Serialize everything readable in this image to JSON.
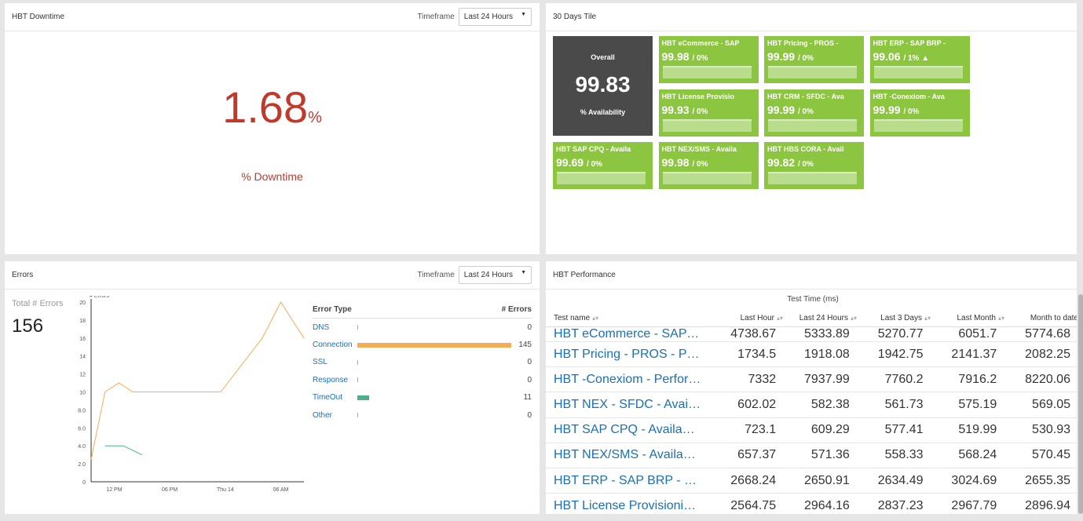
{
  "downtime": {
    "title": "HBT Downtime",
    "timeframe_label": "Timeframe",
    "timeframe_value": "Last 24 Hours",
    "value": "1.68",
    "unit": "%",
    "label": "% Downtime"
  },
  "tiles": {
    "title": "30 Days Tile",
    "overall": {
      "label": "Overall",
      "value": "99.83",
      "sublabel": "% Availability"
    },
    "items": [
      {
        "name": "HBT eCommerce - SAP",
        "value": "99.98",
        "change": "/ 0%"
      },
      {
        "name": "HBT Pricing - PROS -",
        "value": "99.99",
        "change": "/ 0%"
      },
      {
        "name": "HBT ERP - SAP BRP -",
        "value": "99.06",
        "change": "/ 1% ▲"
      },
      {
        "name": "HBT License Provisio",
        "value": "99.93",
        "change": "/ 0%"
      },
      {
        "name": "HBT CRM - SFDC - Ava",
        "value": "99.99",
        "change": "/ 0%"
      },
      {
        "name": "HBT -Conexiom - Ava",
        "value": "99.99",
        "change": "/ 0%"
      },
      {
        "name": "HBT SAP CPQ - Availa",
        "value": "99.69",
        "change": "/ 0%"
      },
      {
        "name": "HBT NEX/SMS - Availa",
        "value": "99.98",
        "change": "/ 0%"
      },
      {
        "name": "HBT HBS CORA - Avail",
        "value": "99.82",
        "change": "/ 0%"
      }
    ],
    "colors": {
      "tile": "#8cc540",
      "overall": "#4a4a4a"
    }
  },
  "errors": {
    "title": "Errors",
    "timeframe_label": "Timeframe",
    "timeframe_value": "Last 24 Hours",
    "total_label": "Total # Errors",
    "total_value": "156",
    "table_headers": [
      "Error Type",
      "# Errors"
    ],
    "rows": [
      {
        "type": "DNS",
        "count": 0,
        "color": "#aaaaaa"
      },
      {
        "type": "Connection",
        "count": 145,
        "color": "#f5ad55"
      },
      {
        "type": "SSL",
        "count": 0,
        "color": "#aaaaaa"
      },
      {
        "type": "Response",
        "count": 0,
        "color": "#aaaaaa"
      },
      {
        "type": "TimeOut",
        "count": 11,
        "color": "#4caf85"
      },
      {
        "type": "Other",
        "count": 0,
        "color": "#aaaaaa"
      }
    ]
  },
  "chart_data": {
    "type": "line",
    "title": "",
    "ylabel": "# Errors",
    "xlabel": "",
    "ylim": [
      0,
      20
    ],
    "yticks": [
      "0",
      "2.0",
      "4.0",
      "6.0",
      "8.0",
      "10",
      "12",
      "14",
      "16",
      "18",
      "20"
    ],
    "xticks": [
      {
        "label": "12 PM",
        "x": 2
      },
      {
        "label": "06 PM",
        "x": 8
      },
      {
        "label": "Thu 14",
        "x": 14
      },
      {
        "label": "06 AM",
        "x": 20
      }
    ],
    "xlim": [
      -0.5,
      22.5
    ],
    "series": [
      {
        "color": "#f5ad55",
        "x": [
          -0.5,
          1,
          2.5,
          4,
          10,
          13.5,
          18,
          20,
          22.5
        ],
        "values": [
          2.5,
          10,
          11,
          10,
          10,
          10,
          16,
          20,
          16
        ]
      },
      {
        "color": "#4caf85",
        "x": [
          1,
          3,
          5
        ],
        "values": [
          4,
          4,
          3
        ]
      }
    ]
  },
  "performance": {
    "title": "HBT Performance",
    "group_header": "Test Time (ms)",
    "columns": [
      "Test name",
      "Last Hour",
      "Last 24 Hours",
      "Last 3 Days",
      "Last Month",
      "Month to date"
    ],
    "rows": [
      [
        "HBT eCommerce - SAP Hybris - Perfor…",
        "4738.67",
        "5333.89",
        "5270.77",
        "6051.7",
        "5774.68"
      ],
      [
        "HBT Pricing - PROS - Performance",
        "1734.5",
        "1918.08",
        "1942.75",
        "2141.37",
        "2082.25"
      ],
      [
        "HBT -Conexiom - Performance",
        "7332",
        "7937.99",
        "7760.2",
        "7916.2",
        "8220.06"
      ],
      [
        "HBT NEX - SFDC - Availability",
        "602.02",
        "582.38",
        "561.73",
        "575.19",
        "569.05"
      ],
      [
        "HBT SAP CPQ - Availability",
        "723.1",
        "609.29",
        "577.41",
        "519.99",
        "530.93"
      ],
      [
        "HBT NEX/SMS - Availability",
        "657.37",
        "571.36",
        "558.33",
        "568.24",
        "570.45"
      ],
      [
        "HBT ERP - SAP BRP - Performance",
        "2668.24",
        "2650.91",
        "2634.49",
        "3024.69",
        "2655.35"
      ],
      [
        "HBT License Provisioning - Flexera - P…",
        "2564.75",
        "2964.16",
        "2837.23",
        "2967.79",
        "2896.94"
      ]
    ]
  }
}
